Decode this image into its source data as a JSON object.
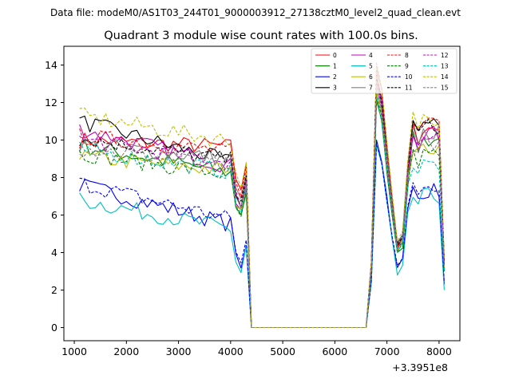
{
  "chart_data": {
    "type": "line",
    "suptitle": "Data file: modeM0/AS1T03_244T01_9000003912_27138cztM0_level2_quad_clean.evt",
    "title": "Quadrant 3 module wise count rates with 100.0s bins.",
    "xlabel": "",
    "ylabel": "",
    "x_offset_label": "+3.3951e8",
    "xlim": [
      800,
      8400
    ],
    "ylim": [
      -0.7,
      15
    ],
    "xticks": [
      1000,
      2000,
      3000,
      4000,
      5000,
      6000,
      7000,
      8000
    ],
    "yticks": [
      0,
      2,
      4,
      6,
      8,
      10,
      12,
      14
    ],
    "xtick_labels": [
      "1000",
      "2000",
      "3000",
      "4000",
      "5000",
      "6000",
      "7000",
      "8000"
    ],
    "ytick_labels": [
      "0",
      "2",
      "4",
      "6",
      "8",
      "10",
      "12",
      "14"
    ],
    "legend_placement": "upper-right",
    "x_segment1": [
      1100,
      1200,
      1300,
      1400,
      1500,
      1600,
      1700,
      1800,
      1900,
      2000,
      2100,
      2200,
      2300,
      2400,
      2500,
      2600,
      2700,
      2800,
      2900,
      3000,
      3100,
      3200,
      3300,
      3400,
      3500,
      3600,
      3700,
      3800,
      3900,
      4000,
      4100,
      4200,
      4300
    ],
    "x_segment2": [
      4400,
      6600
    ],
    "x_segment3": [
      6700,
      6800,
      6900,
      7000,
      7100,
      7200,
      7300,
      7400,
      7500,
      7600,
      7700,
      7800,
      7900,
      8000,
      8100
    ],
    "series": [
      {
        "name": "0",
        "color": "#ff0000",
        "dash": false,
        "level": 10.0,
        "end": 9.6,
        "peak": 13.6,
        "dip": 4.3,
        "mid": 10.6,
        "final": 3.4
      },
      {
        "name": "1",
        "color": "#008000",
        "dash": false,
        "level": 9.7,
        "end": 8.1,
        "peak": 12.1,
        "dip": 4.0,
        "mid": 10.0,
        "final": 3.0
      },
      {
        "name": "2",
        "color": "#0000ff",
        "dash": false,
        "level": 7.6,
        "end": 5.3,
        "peak": 10.0,
        "dip": 3.2,
        "mid": 7.3,
        "final": 2.3
      },
      {
        "name": "3",
        "color": "#000000",
        "dash": false,
        "level": 11.0,
        "end": 8.6,
        "peak": 13.9,
        "dip": 4.5,
        "mid": 10.9,
        "final": 3.6
      },
      {
        "name": "4",
        "color": "#c000c0",
        "dash": false,
        "level": 10.6,
        "end": 8.4,
        "peak": 13.2,
        "dip": 4.2,
        "mid": 10.3,
        "final": 3.3
      },
      {
        "name": "5",
        "color": "#00bfbf",
        "dash": false,
        "level": 6.8,
        "end": 5.1,
        "peak": 9.7,
        "dip": 2.8,
        "mid": 7.0,
        "final": 2.0
      },
      {
        "name": "6",
        "color": "#bfbf00",
        "dash": false,
        "level": 9.1,
        "end": 8.3,
        "peak": 12.6,
        "dip": 4.1,
        "mid": 9.6,
        "final": 3.2
      },
      {
        "name": "7",
        "color": "#808080",
        "dash": false,
        "level": 9.8,
        "end": 8.9,
        "peak": 13.1,
        "dip": 4.4,
        "mid": 10.4,
        "final": 3.5
      },
      {
        "name": "8",
        "color": "#ff0000",
        "dash": true,
        "level": 10.2,
        "end": 9.3,
        "peak": 14.1,
        "dip": 4.4,
        "mid": 11.3,
        "final": 3.6
      },
      {
        "name": "9",
        "color": "#008000",
        "dash": true,
        "level": 9.3,
        "end": 8.0,
        "peak": 12.3,
        "dip": 4.0,
        "mid": 9.2,
        "final": 3.0
      },
      {
        "name": "10",
        "color": "#0000ff",
        "dash": true,
        "level": 7.7,
        "end": 5.6,
        "peak": 9.9,
        "dip": 3.3,
        "mid": 7.6,
        "final": 2.4
      },
      {
        "name": "11",
        "color": "#000000",
        "dash": true,
        "level": 10.1,
        "end": 8.8,
        "peak": 13.3,
        "dip": 4.3,
        "mid": 10.7,
        "final": 3.4
      },
      {
        "name": "12",
        "color": "#c000c0",
        "dash": true,
        "level": 10.0,
        "end": 8.7,
        "peak": 13.0,
        "dip": 4.2,
        "mid": 10.1,
        "final": 3.3
      },
      {
        "name": "13",
        "color": "#00bfbf",
        "dash": true,
        "level": 9.5,
        "end": 8.2,
        "peak": 12.4,
        "dip": 4.0,
        "mid": 8.7,
        "final": 3.0
      },
      {
        "name": "14",
        "color": "#bfbf00",
        "dash": true,
        "level": 11.3,
        "end": 9.8,
        "peak": 14.0,
        "dip": 4.6,
        "mid": 11.2,
        "final": 3.7
      },
      {
        "name": "15",
        "color": "#808080",
        "dash": true,
        "level": 9.6,
        "end": 8.5,
        "peak": 12.8,
        "dip": 4.2,
        "mid": 9.9,
        "final": 3.3
      }
    ]
  }
}
